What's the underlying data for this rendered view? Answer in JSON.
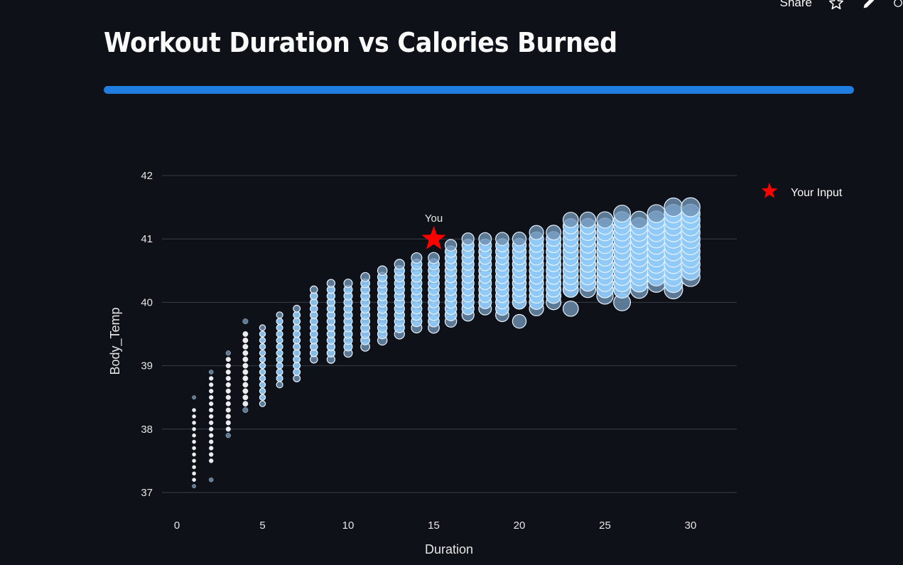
{
  "toolbar": {
    "share_label": "Share"
  },
  "header": {
    "title": "Workout Duration vs Calories Burned"
  },
  "progress": {
    "fraction": 1.0,
    "color": "#1f7ee0"
  },
  "colors": {
    "background": "#0e1117",
    "point": "#90caf9",
    "marker": "#ff0000",
    "grid": "#3a3d45"
  },
  "chart_data": {
    "type": "scatter",
    "title": "",
    "xlabel": "Duration",
    "ylabel": "Body_Temp",
    "xlim": [
      -2.5,
      32.5
    ],
    "ylim": [
      36.8,
      42.3
    ],
    "x_ticks": [
      0,
      5,
      10,
      15,
      20,
      25,
      30
    ],
    "y_ticks": [
      37,
      38,
      39,
      40,
      41,
      42
    ],
    "grid": "horizontal",
    "legend_position": "right",
    "point_size_encodes": "Calories",
    "series": [
      {
        "type": "scatter",
        "columns": [
          {
            "duration": 1,
            "body_temp": [
              37.1,
              37.2,
              37.3,
              37.4,
              37.5,
              37.6,
              37.7,
              37.8,
              37.9,
              38.0,
              38.1,
              38.2,
              38.3,
              38.5
            ]
          },
          {
            "duration": 2,
            "body_temp": [
              37.2,
              37.5,
              37.6,
              37.7,
              37.8,
              37.9,
              38.0,
              38.1,
              38.2,
              38.3,
              38.4,
              38.5,
              38.6,
              38.7,
              38.8,
              38.9
            ]
          },
          {
            "duration": 3,
            "body_temp": [
              37.9,
              38.0,
              38.1,
              38.2,
              38.3,
              38.4,
              38.5,
              38.6,
              38.7,
              38.8,
              38.9,
              39.0,
              39.1,
              39.2
            ]
          },
          {
            "duration": 4,
            "body_temp": [
              38.3,
              38.4,
              38.5,
              38.6,
              38.7,
              38.8,
              38.9,
              39.0,
              39.1,
              39.2,
              39.3,
              39.4,
              39.5,
              39.7
            ]
          },
          {
            "duration": 5,
            "body_temp": [
              38.4,
              38.5,
              38.6,
              38.7,
              38.8,
              38.9,
              39.0,
              39.1,
              39.2,
              39.3,
              39.4,
              39.5,
              39.6
            ]
          },
          {
            "duration": 6,
            "body_temp": [
              38.7,
              38.8,
              38.9,
              39.0,
              39.1,
              39.2,
              39.3,
              39.4,
              39.5,
              39.6,
              39.7,
              39.8
            ]
          },
          {
            "duration": 7,
            "body_temp": [
              38.8,
              38.9,
              39.0,
              39.1,
              39.2,
              39.3,
              39.4,
              39.5,
              39.6,
              39.7,
              39.8,
              39.9
            ]
          },
          {
            "duration": 8,
            "body_temp": [
              39.1,
              39.2,
              39.3,
              39.4,
              39.5,
              39.6,
              39.7,
              39.8,
              39.9,
              40.0,
              40.1,
              40.2
            ]
          },
          {
            "duration": 9,
            "body_temp": [
              39.1,
              39.2,
              39.3,
              39.4,
              39.5,
              39.6,
              39.7,
              39.8,
              39.9,
              40.0,
              40.1,
              40.2,
              40.3
            ]
          },
          {
            "duration": 10,
            "body_temp": [
              39.2,
              39.3,
              39.4,
              39.5,
              39.6,
              39.7,
              39.8,
              39.9,
              40.0,
              40.1,
              40.2,
              40.3
            ]
          },
          {
            "duration": 11,
            "body_temp": [
              39.3,
              39.4,
              39.5,
              39.6,
              39.7,
              39.8,
              39.9,
              40.0,
              40.1,
              40.2,
              40.3,
              40.4
            ]
          },
          {
            "duration": 12,
            "body_temp": [
              39.4,
              39.5,
              39.6,
              39.7,
              39.8,
              39.9,
              40.0,
              40.1,
              40.2,
              40.3,
              40.4,
              40.5
            ]
          },
          {
            "duration": 13,
            "body_temp": [
              39.5,
              39.6,
              39.7,
              39.8,
              39.9,
              40.0,
              40.1,
              40.2,
              40.3,
              40.4,
              40.5,
              40.6
            ]
          },
          {
            "duration": 14,
            "body_temp": [
              39.6,
              39.7,
              39.8,
              39.9,
              40.0,
              40.1,
              40.2,
              40.3,
              40.4,
              40.5,
              40.6,
              40.7
            ]
          },
          {
            "duration": 15,
            "body_temp": [
              39.6,
              39.7,
              39.8,
              39.9,
              40.0,
              40.1,
              40.2,
              40.3,
              40.4,
              40.5,
              40.6,
              40.7
            ]
          },
          {
            "duration": 16,
            "body_temp": [
              39.7,
              39.8,
              39.9,
              40.0,
              40.1,
              40.2,
              40.3,
              40.4,
              40.5,
              40.6,
              40.7,
              40.8,
              40.9
            ]
          },
          {
            "duration": 17,
            "body_temp": [
              39.8,
              39.9,
              40.0,
              40.1,
              40.2,
              40.3,
              40.4,
              40.5,
              40.6,
              40.7,
              40.8,
              40.9,
              41.0
            ]
          },
          {
            "duration": 18,
            "body_temp": [
              39.9,
              40.0,
              40.1,
              40.2,
              40.3,
              40.4,
              40.5,
              40.6,
              40.7,
              40.8,
              40.9,
              41.0
            ]
          },
          {
            "duration": 19,
            "body_temp": [
              39.8,
              39.9,
              40.0,
              40.1,
              40.2,
              40.3,
              40.4,
              40.5,
              40.6,
              40.7,
              40.8,
              40.9,
              41.0
            ]
          },
          {
            "duration": 20,
            "body_temp": [
              39.7,
              40.0,
              40.1,
              40.2,
              40.3,
              40.4,
              40.5,
              40.6,
              40.7,
              40.8,
              40.9,
              41.0
            ]
          },
          {
            "duration": 21,
            "body_temp": [
              39.9,
              40.0,
              40.1,
              40.2,
              40.3,
              40.4,
              40.5,
              40.6,
              40.7,
              40.8,
              40.9,
              41.0,
              41.1
            ]
          },
          {
            "duration": 22,
            "body_temp": [
              40.0,
              40.1,
              40.2,
              40.3,
              40.4,
              40.5,
              40.6,
              40.7,
              40.8,
              40.9,
              41.0,
              41.1
            ]
          },
          {
            "duration": 23,
            "body_temp": [
              39.9,
              40.2,
              40.3,
              40.4,
              40.5,
              40.6,
              40.7,
              40.8,
              40.9,
              41.0,
              41.1,
              41.2,
              41.3
            ]
          },
          {
            "duration": 24,
            "body_temp": [
              40.2,
              40.3,
              40.4,
              40.5,
              40.6,
              40.7,
              40.8,
              40.9,
              41.0,
              41.1,
              41.2,
              41.3
            ]
          },
          {
            "duration": 25,
            "body_temp": [
              40.1,
              40.2,
              40.3,
              40.4,
              40.5,
              40.6,
              40.7,
              40.8,
              40.9,
              41.0,
              41.1,
              41.2,
              41.3
            ]
          },
          {
            "duration": 26,
            "body_temp": [
              40.0,
              40.2,
              40.3,
              40.4,
              40.5,
              40.6,
              40.7,
              40.8,
              40.9,
              41.0,
              41.1,
              41.2,
              41.3,
              41.4
            ]
          },
          {
            "duration": 27,
            "body_temp": [
              40.2,
              40.3,
              40.4,
              40.5,
              40.6,
              40.7,
              40.8,
              40.9,
              41.0,
              41.1,
              41.2,
              41.3
            ]
          },
          {
            "duration": 28,
            "body_temp": [
              40.3,
              40.4,
              40.5,
              40.6,
              40.7,
              40.8,
              40.9,
              41.0,
              41.1,
              41.2,
              41.3,
              41.4
            ]
          },
          {
            "duration": 29,
            "body_temp": [
              40.2,
              40.3,
              40.4,
              40.5,
              40.6,
              40.7,
              40.8,
              40.9,
              41.0,
              41.1,
              41.2,
              41.3,
              41.4,
              41.5
            ]
          },
          {
            "duration": 30,
            "body_temp": [
              40.4,
              40.5,
              40.6,
              40.7,
              40.8,
              40.9,
              41.0,
              41.1,
              41.2,
              41.3,
              41.4,
              41.5
            ]
          }
        ]
      },
      {
        "name": "Your Input",
        "type": "marker",
        "symbol": "star",
        "x": 15,
        "y": 41.0,
        "label": "You"
      }
    ]
  }
}
